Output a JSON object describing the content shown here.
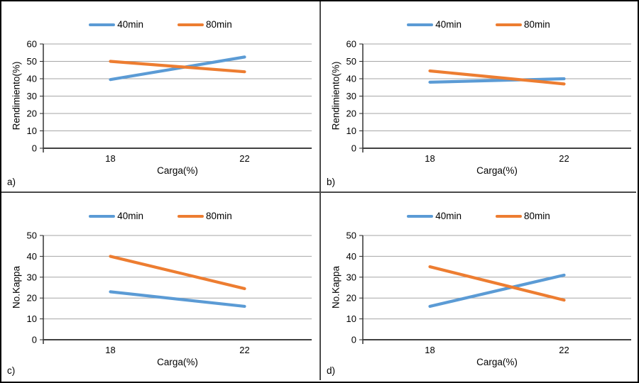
{
  "figure": {
    "background": "#ffffff",
    "border_color": "#000000",
    "divider_color": "#4a4a4a",
    "gridline_color": "#a6a6a6",
    "x_axis_color": "#404040",
    "y_axis_color": "#262626",
    "text_color": "#000000",
    "series_colors": {
      "40min": "#5B9BD5",
      "80min": "#ED7D31"
    }
  },
  "chart_data": [
    {
      "id": "a",
      "panel_label": "a)",
      "type": "line",
      "x": [
        "18",
        "22"
      ],
      "xlabel": "Carga(%)",
      "ylabel": "Rendimiento(%)",
      "ylim": [
        0,
        60
      ],
      "ytick_step": 10,
      "grid": true,
      "legend_position": "top-center",
      "series": [
        {
          "name": "40min",
          "color": "#5B9BD5",
          "values": [
            39.5,
            52.5
          ]
        },
        {
          "name": "80min",
          "color": "#ED7D31",
          "values": [
            50,
            44
          ]
        }
      ]
    },
    {
      "id": "b",
      "panel_label": "b)",
      "type": "line",
      "x": [
        "18",
        "22"
      ],
      "xlabel": "Carga(%)",
      "ylabel": "Rendimiento(%)",
      "ylim": [
        0,
        60
      ],
      "ytick_step": 10,
      "grid": true,
      "legend_position": "top-center",
      "series": [
        {
          "name": "40min",
          "color": "#5B9BD5",
          "values": [
            38,
            40
          ]
        },
        {
          "name": "80min",
          "color": "#ED7D31",
          "values": [
            44.5,
            37
          ]
        }
      ]
    },
    {
      "id": "c",
      "panel_label": "c)",
      "type": "line",
      "x": [
        "18",
        "22"
      ],
      "xlabel": "Carga(%)",
      "ylabel": "No.Kappa",
      "ylim": [
        0,
        50
      ],
      "ytick_step": 10,
      "grid": true,
      "legend_position": "top-center",
      "series": [
        {
          "name": "40min",
          "color": "#5B9BD5",
          "values": [
            23,
            16
          ]
        },
        {
          "name": "80min",
          "color": "#ED7D31",
          "values": [
            40,
            24.5
          ]
        }
      ]
    },
    {
      "id": "d",
      "panel_label": "d)",
      "type": "line",
      "x": [
        "18",
        "22"
      ],
      "xlabel": "Carga(%)",
      "ylabel": "No.Kappa",
      "ylim": [
        0,
        50
      ],
      "ytick_step": 10,
      "grid": true,
      "legend_position": "top-center",
      "series": [
        {
          "name": "40min",
          "color": "#5B9BD5",
          "values": [
            16,
            31
          ]
        },
        {
          "name": "80min",
          "color": "#ED7D31",
          "values": [
            35,
            19
          ]
        }
      ]
    }
  ]
}
